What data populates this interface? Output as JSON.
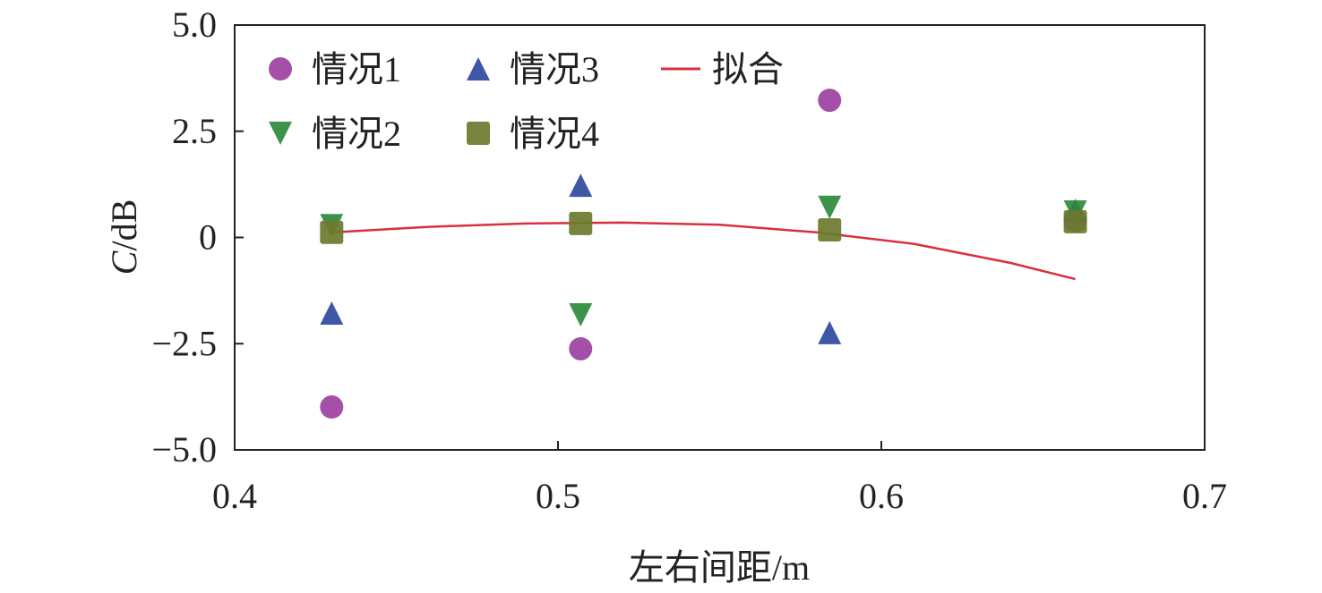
{
  "chart_data": {
    "type": "scatter",
    "title": "",
    "xlabel": "左右间距/m",
    "ylabel_italic": "C",
    "ylabel_rest": "/dB",
    "xlim": [
      0.4,
      0.7
    ],
    "ylim": [
      -5.0,
      5.0
    ],
    "xticks": [
      0.4,
      0.5,
      0.6,
      0.7
    ],
    "xtick_labels": [
      "0.4",
      "0.5",
      "0.6",
      "0.7"
    ],
    "yticks": [
      5.0,
      2.5,
      0,
      -2.5,
      -5.0
    ],
    "ytick_labels": [
      "5.0",
      "2.5",
      "0",
      "−2.5",
      "−5.0"
    ],
    "grid": false,
    "legend_placement": "top-left",
    "series": [
      {
        "name": "情况1",
        "marker": "circle",
        "color": "#9a3d9f",
        "x": [
          0.43,
          0.507,
          0.584,
          0.66
        ],
        "y": [
          -3.99,
          -2.62,
          3.23,
          0.4
        ]
      },
      {
        "name": "情况2",
        "marker": "triangle-down",
        "color": "#2e8a3c",
        "x": [
          0.43,
          0.507,
          0.584,
          0.66
        ],
        "y": [
          0.28,
          -1.82,
          0.71,
          0.6
        ]
      },
      {
        "name": "情况3",
        "marker": "triangle-up",
        "color": "#2f49a0",
        "x": [
          0.43,
          0.507,
          0.584,
          0.66
        ],
        "y": [
          -1.78,
          1.23,
          -2.24,
          0.64
        ]
      },
      {
        "name": "情况4",
        "marker": "square",
        "color": "#6b7a2c",
        "x": [
          0.43,
          0.507,
          0.584,
          0.66
        ],
        "y": [
          0.12,
          0.33,
          0.18,
          0.37
        ]
      }
    ],
    "fit": {
      "name": "拟合",
      "color": "#d8303f",
      "x": [
        0.43,
        0.46,
        0.49,
        0.52,
        0.55,
        0.58,
        0.61,
        0.64,
        0.66
      ],
      "y": [
        0.12,
        0.25,
        0.33,
        0.35,
        0.3,
        0.12,
        -0.15,
        -0.6,
        -0.98
      ]
    }
  }
}
